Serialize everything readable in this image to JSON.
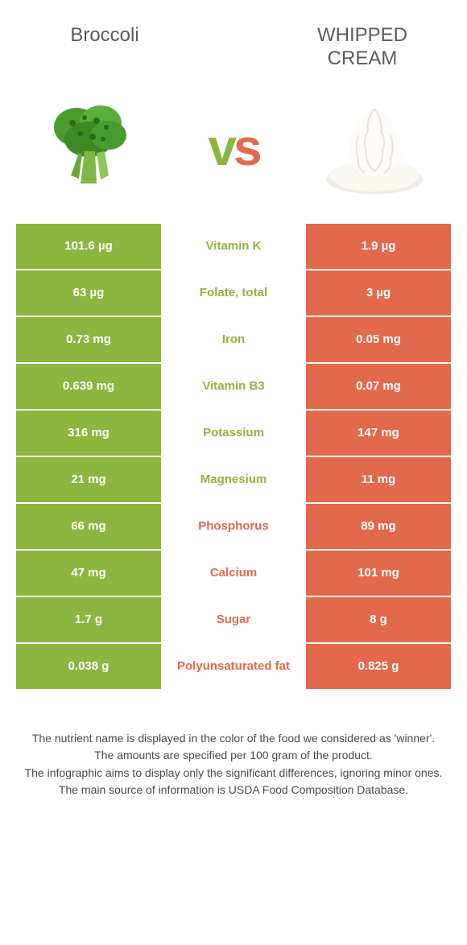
{
  "colors": {
    "green": "#8bb63f",
    "orange": "#e2694c",
    "title_text": "#5a5a5a",
    "white": "#ffffff"
  },
  "food_left": {
    "name": "Broccoli",
    "color": "#8bb63f"
  },
  "food_right": {
    "name": "Whipped cream",
    "color": "#e2694c"
  },
  "vs": {
    "v": "v",
    "s": "s"
  },
  "rows": [
    {
      "left": "101.6 µg",
      "label": "Vitamin K",
      "right": "1.9 µg",
      "winner": "left"
    },
    {
      "left": "63 µg",
      "label": "Folate, total",
      "right": "3 µg",
      "winner": "left"
    },
    {
      "left": "0.73 mg",
      "label": "Iron",
      "right": "0.05 mg",
      "winner": "left"
    },
    {
      "left": "0.639 mg",
      "label": "Vitamin B3",
      "right": "0.07 mg",
      "winner": "left"
    },
    {
      "left": "316 mg",
      "label": "Potassium",
      "right": "147 mg",
      "winner": "left"
    },
    {
      "left": "21 mg",
      "label": "Magnesium",
      "right": "11 mg",
      "winner": "left"
    },
    {
      "left": "66 mg",
      "label": "Phosphorus",
      "right": "89 mg",
      "winner": "right"
    },
    {
      "left": "47 mg",
      "label": "Calcium",
      "right": "101 mg",
      "winner": "right"
    },
    {
      "left": "1.7 g",
      "label": "Sugar",
      "right": "8 g",
      "winner": "right"
    },
    {
      "left": "0.038 g",
      "label": "Polyunsaturated fat",
      "right": "0.825 g",
      "winner": "right"
    }
  ],
  "footnotes": [
    "The nutrient name is displayed in the color of the food we considered as 'winner'.",
    "The amounts are specified per 100 gram of the product.",
    "The infographic aims to display only the significant differences, ignoring minor ones.",
    "The main source of information is USDA Food Composition Database."
  ]
}
